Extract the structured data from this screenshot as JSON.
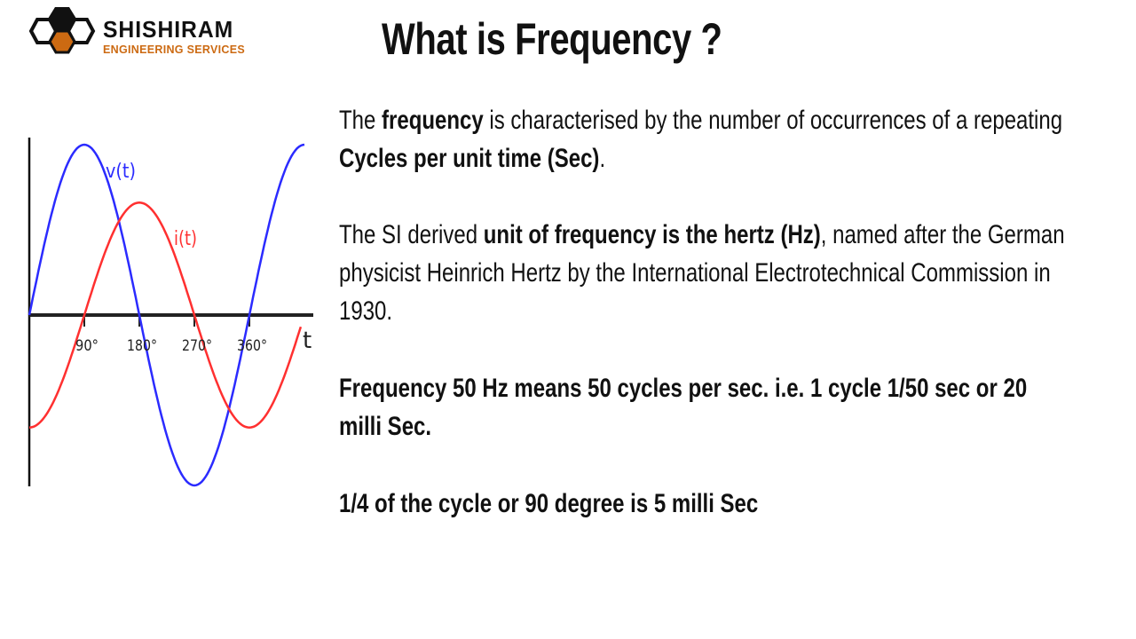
{
  "logo": {
    "name": "SHISHIRAM",
    "subtitle": "ENGINEERING SERVICES",
    "icon": "honeycomb-hexagons-icon",
    "colors": {
      "dark": "#111111",
      "accent": "#cc6a12"
    }
  },
  "title": "What is Frequency ?",
  "paragraphs": {
    "p1": {
      "t1": "The ",
      "b1": "frequency",
      "t2": " is characterised by the number of occurrences of a repeating",
      "b2": "Cycles per unit time (Sec)",
      "t3": "."
    },
    "p2": {
      "t1": "The SI derived ",
      "b1": "unit of frequency is the hertz (Hz)",
      "t2": ", named after the German",
      "line2": "physicist Heinrich Hertz by the International Electrotechnical Commission in",
      "line3": "1930."
    },
    "p3": {
      "line1": "Frequency 50 Hz means 50 cycles per sec. i.e. 1 cycle 1/50 sec or 20",
      "line2": "milli Sec."
    },
    "p4": {
      "line1": "1/4 of the cycle or 90 degree is 5 milli Sec"
    }
  },
  "chart_data": {
    "type": "line",
    "title": "",
    "xlabel": "t",
    "ylabel": "",
    "x_ticks": [
      "90°",
      "180°",
      "270°",
      "360°"
    ],
    "x_range_degrees": [
      0,
      450
    ],
    "grid": false,
    "series": [
      {
        "name": "v(t)",
        "color": "#2b2bff",
        "amplitude": 1.0,
        "phase_deg": 0,
        "function": "sin"
      },
      {
        "name": "i(t)",
        "color": "#ff3030",
        "amplitude": 0.66,
        "phase_deg": -90,
        "function": "sin"
      }
    ],
    "annotations": [
      {
        "text": "v(t)",
        "color": "#2b2bff"
      },
      {
        "text": "i(t)",
        "color": "#ff3030"
      }
    ]
  }
}
